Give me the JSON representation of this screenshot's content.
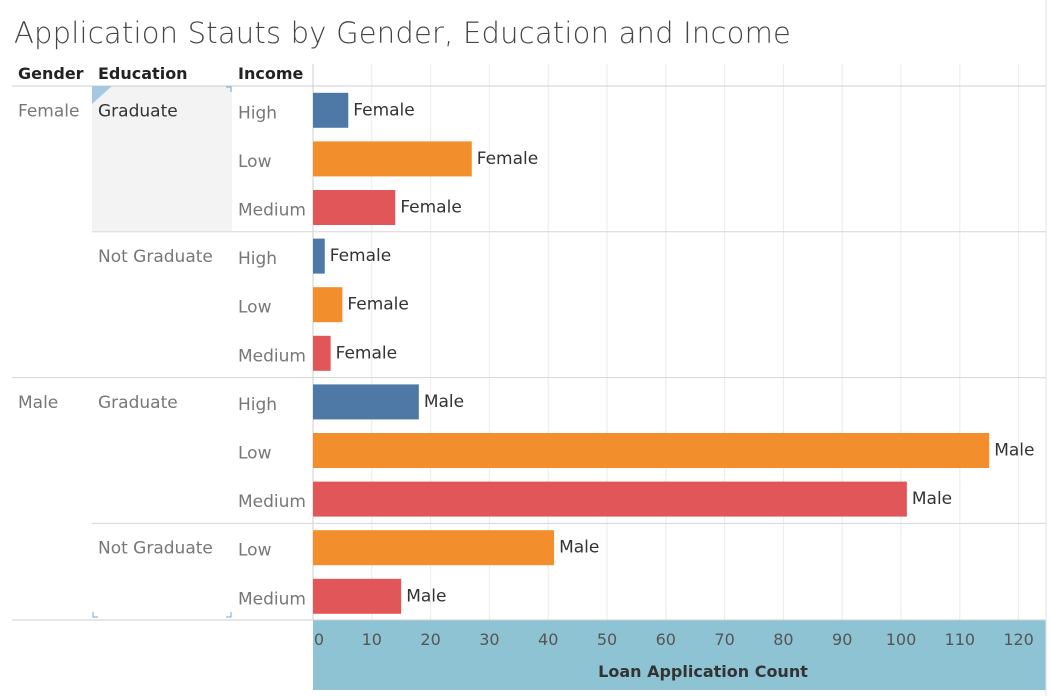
{
  "title": "Application Stauts by Gender, Education and Income",
  "headers": {
    "gender": "Gender",
    "education": "Education",
    "income": "Income"
  },
  "colors": {
    "High": "#4e79a7",
    "Low": "#f28e2b",
    "Medium": "#e15759",
    "axis_band": "#8ec3d4",
    "selected_band": "#f3f3f3"
  },
  "chart_data": {
    "type": "bar",
    "orientation": "horizontal",
    "title": "Application Stauts by Gender, Education and Income",
    "xlabel": "Loan Application Count",
    "xlim": [
      0,
      123
    ],
    "xticks": [
      0,
      10,
      20,
      30,
      40,
      50,
      60,
      70,
      80,
      90,
      100,
      110,
      120
    ],
    "grid": true,
    "row_dimensions": [
      "Gender",
      "Education",
      "Income"
    ],
    "rows": [
      {
        "gender": "Female",
        "education": "Graduate",
        "income": "High",
        "value": 6,
        "label": "Female"
      },
      {
        "gender": "Female",
        "education": "Graduate",
        "income": "Low",
        "value": 27,
        "label": "Female"
      },
      {
        "gender": "Female",
        "education": "Graduate",
        "income": "Medium",
        "value": 14,
        "label": "Female"
      },
      {
        "gender": "Female",
        "education": "Not Graduate",
        "income": "High",
        "value": 2,
        "label": "Female"
      },
      {
        "gender": "Female",
        "education": "Not Graduate",
        "income": "Low",
        "value": 5,
        "label": "Female"
      },
      {
        "gender": "Female",
        "education": "Not Graduate",
        "income": "Medium",
        "value": 3,
        "label": "Female"
      },
      {
        "gender": "Male",
        "education": "Graduate",
        "income": "High",
        "value": 18,
        "label": "Male"
      },
      {
        "gender": "Male",
        "education": "Graduate",
        "income": "Low",
        "value": 115,
        "label": "Male"
      },
      {
        "gender": "Male",
        "education": "Graduate",
        "income": "Medium",
        "value": 101,
        "label": "Male"
      },
      {
        "gender": "Male",
        "education": "Not Graduate",
        "income": "Low",
        "value": 41,
        "label": "Male"
      },
      {
        "gender": "Male",
        "education": "Not Graduate",
        "income": "Medium",
        "value": 15,
        "label": "Male"
      }
    ]
  }
}
